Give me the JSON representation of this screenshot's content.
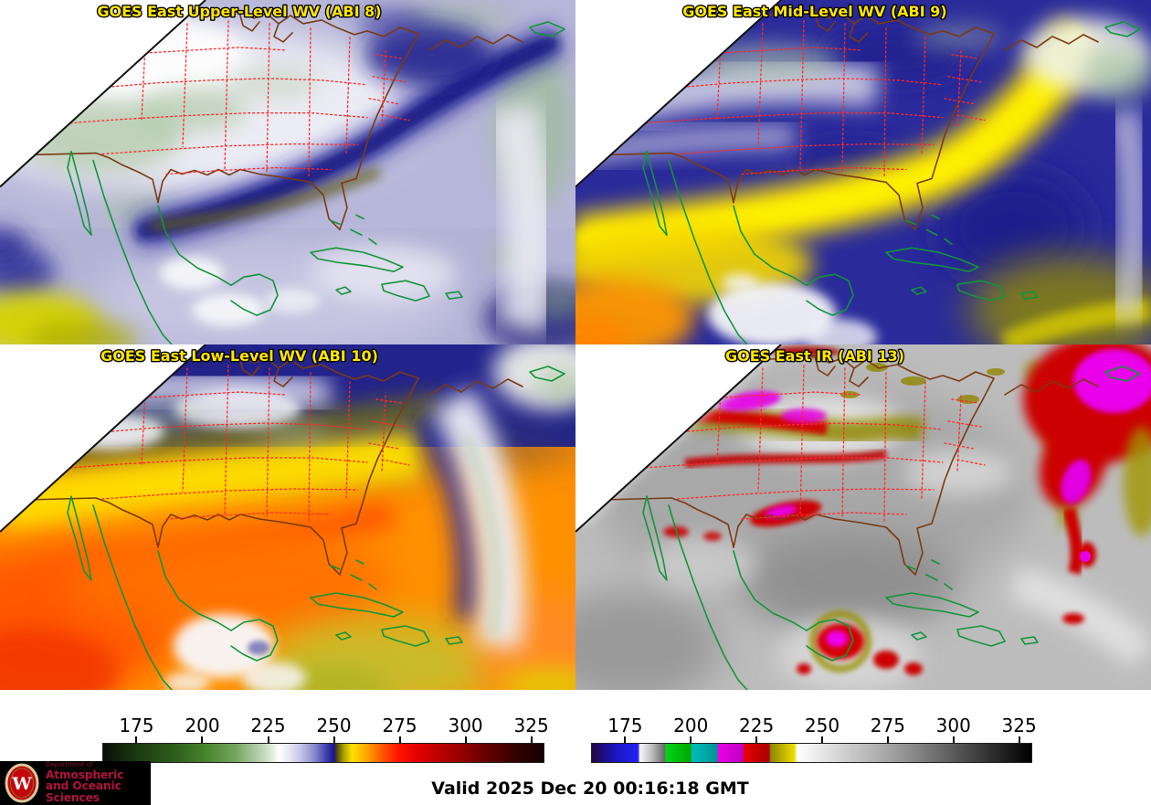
{
  "panels": [
    {
      "title": "GOES East Upper-Level WV (ABI 8)"
    },
    {
      "title": "GOES East Mid-Level WV (ABI 9)"
    },
    {
      "title": "GOES East Low-Level WV (ABI 10)"
    },
    {
      "title": "GOES East IR (ABI 13)"
    }
  ],
  "panel_title_color": "#ffe600",
  "map_overlay": {
    "state_borders_color": "#ff2828",
    "us_coast_color": "#7a3a12",
    "intl_coast_color": "#12953a"
  },
  "colorbars": {
    "left": {
      "name": "water-vapor-brightness-temperature-colorbar",
      "ticks": [
        175,
        200,
        225,
        250,
        275,
        300,
        325
      ],
      "range": [
        162,
        330
      ],
      "stops": [
        [
          "#0a0e06",
          0.0
        ],
        [
          "#1c3a10",
          0.077
        ],
        [
          "#2e5c1c",
          0.16
        ],
        [
          "#44802a",
          0.226
        ],
        [
          "#74a55c",
          0.3
        ],
        [
          "#a5c49a",
          0.34
        ],
        [
          "#d2e2cc",
          0.375
        ],
        [
          "#ffffff",
          0.4
        ],
        [
          "#eaeaf5",
          0.42
        ],
        [
          "#c2c2e6",
          0.45
        ],
        [
          "#8888cc",
          0.48
        ],
        [
          "#4444ad",
          0.505
        ],
        [
          "#151591",
          0.524
        ],
        [
          "#4a4510",
          0.53
        ],
        [
          "#a89a00",
          0.545
        ],
        [
          "#ffe100",
          0.565
        ],
        [
          "#ffb400",
          0.59
        ],
        [
          "#ff8000",
          0.615
        ],
        [
          "#ff4000",
          0.645
        ],
        [
          "#ff1400",
          0.672
        ],
        [
          "#e00000",
          0.715
        ],
        [
          "#a80000",
          0.79
        ],
        [
          "#660000",
          0.87
        ],
        [
          "#330000",
          0.94
        ],
        [
          "#150000",
          1.0
        ]
      ]
    },
    "right": {
      "name": "infrared-brightness-temperature-colorbar",
      "ticks": [
        175,
        200,
        225,
        250,
        275,
        300,
        325
      ],
      "range": [
        162,
        330
      ],
      "stops": [
        [
          "#200646",
          0.0
        ],
        [
          "#1b16c0",
          0.055
        ],
        [
          "#2222f5",
          0.105
        ],
        [
          "#f8f8f8",
          0.109
        ],
        [
          "#c0c0c0",
          0.135
        ],
        [
          "#6a6a6a",
          0.165
        ],
        [
          "#00d418",
          0.169
        ],
        [
          "#00a800",
          0.224
        ],
        [
          "#00bcbc",
          0.228
        ],
        [
          "#009494",
          0.284
        ],
        [
          "#e800e8",
          0.288
        ],
        [
          "#c000c0",
          0.343
        ],
        [
          "#e80000",
          0.347
        ],
        [
          "#a80000",
          0.403
        ],
        [
          "#8f8600",
          0.407
        ],
        [
          "#f0e000",
          0.462
        ],
        [
          "#ffffff",
          0.466
        ],
        [
          "#999999",
          0.7
        ],
        [
          "#000000",
          1.0
        ]
      ]
    }
  },
  "footer": {
    "valid_text": "Valid 2025 Dec 20 00:16:18 GMT"
  },
  "logo": {
    "dept": "Department of",
    "line1": "Atmospheric",
    "line2": "and Oceanic Sciences",
    "letter": "W",
    "bg_color": "#000000",
    "text_color": "#b5123f",
    "crest_red": "#c5050c"
  }
}
